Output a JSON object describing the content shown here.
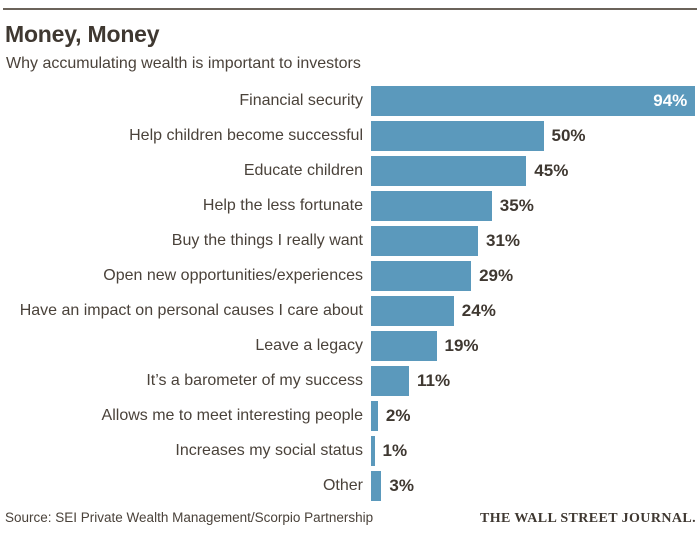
{
  "chart_data": {
    "type": "bar",
    "orientation": "horizontal",
    "title": "Money, Money",
    "subtitle": "Why accumulating wealth is important to investors",
    "source": "Source: SEI Private Wealth Management/Scorpio Partnership",
    "categories": [
      "Financial security",
      "Help children become successful",
      "Educate children",
      "Help the less fortunate",
      "Buy the things I really want",
      "Open new opportunities/experiences",
      "Have an impact on personal causes I care about",
      "Leave a legacy",
      "It’s a barometer of my success",
      "Allows me to meet interesting people",
      "Increases my social status",
      "Other"
    ],
    "values": [
      94,
      50,
      45,
      35,
      31,
      29,
      24,
      19,
      11,
      2,
      1,
      3
    ],
    "value_suffix": "%",
    "xlim": [
      0,
      100
    ],
    "grid": false,
    "legend": false,
    "bar_color": "#5b99bc",
    "value_label_inside_threshold": 60
  },
  "footer": {
    "brand": "THE WALL STREET JOURNAL."
  },
  "colors": {
    "bar": "#5b99bc",
    "text": "#4a423a",
    "text_dark": "#3f3831",
    "rule": "#6b635a",
    "value_inside": "#ffffff"
  }
}
